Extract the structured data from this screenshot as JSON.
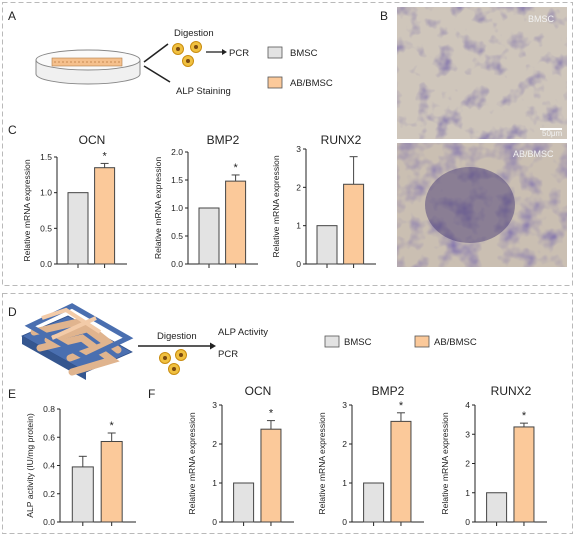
{
  "colors": {
    "bmsc": "#e3e3e3",
    "ab_bmsc": "#fbc99a",
    "border": "#b9b9b9",
    "text": "#222222",
    "stain_purple": "#5a4a8e",
    "tissue_beige": "#cdbba2"
  },
  "icons": [
    "petri-dish-icon",
    "cell-cluster-icon",
    "arrow-icon",
    "scaffold-icon"
  ],
  "panel_labels": {
    "a": "A",
    "b": "B",
    "c": "C",
    "d": "D",
    "e": "E",
    "f": "F"
  },
  "legend": {
    "bmsc": "BMSC",
    "ab_bmsc": "AB/BMSC"
  },
  "schematic_top": {
    "digestion": "Digestion",
    "pcr": "PCR",
    "alp_staining": "ALP Staining"
  },
  "schematic_bottom": {
    "digestion": "Digestion",
    "alp_activity": "ALP Activity",
    "pcr": "PCR"
  },
  "micrographs": {
    "top_label": "BMSC",
    "bottom_label": "AB/BMSC",
    "scale_bar": "50μm"
  },
  "significance": "*",
  "chart_data": [
    {
      "id": "c1",
      "type": "bar",
      "title": "OCN",
      "ylabel": "Relative mRNA expression",
      "categories": [
        "BMSC",
        "AB/BMSC"
      ],
      "values": [
        1.0,
        1.35
      ],
      "errors": [
        0,
        0.06
      ],
      "sig": [
        false,
        true
      ],
      "ylim": [
        0,
        1.5
      ],
      "yticks": [
        0.0,
        0.5,
        1.0,
        1.5
      ],
      "tick_labels": [
        "0.0",
        "0.5",
        "1.0",
        "1.5"
      ]
    },
    {
      "id": "c2",
      "type": "bar",
      "title": "BMP2",
      "ylabel": "Relative mRNA expression",
      "categories": [
        "BMSC",
        "AB/BMSC"
      ],
      "values": [
        1.0,
        1.48
      ],
      "errors": [
        0,
        0.11
      ],
      "sig": [
        false,
        true
      ],
      "ylim": [
        0,
        2.0
      ],
      "yticks": [
        0.0,
        0.5,
        1.0,
        1.5,
        2.0
      ],
      "tick_labels": [
        "0.0",
        "0.5",
        "1.0",
        "1.5",
        "2.0"
      ]
    },
    {
      "id": "c3",
      "type": "bar",
      "title": "RUNX2",
      "ylabel": "Relative mRNA expression",
      "categories": [
        "BMSC",
        "AB/BMSC"
      ],
      "values": [
        1.0,
        2.08
      ],
      "errors": [
        0,
        0.72
      ],
      "sig": [
        false,
        false
      ],
      "ylim": [
        0,
        3
      ],
      "yticks": [
        0,
        1,
        2,
        3
      ],
      "tick_labels": [
        "0",
        "1",
        "2",
        "3"
      ]
    },
    {
      "id": "e",
      "type": "bar",
      "title": "",
      "ylabel": "ALP activity (IU/mg protein)",
      "categories": [
        "BMSC",
        "AB/BMSC"
      ],
      "values": [
        0.39,
        0.57
      ],
      "errors": [
        0.075,
        0.06
      ],
      "sig": [
        false,
        true
      ],
      "ylim": [
        0,
        0.8
      ],
      "yticks": [
        0.0,
        0.2,
        0.4,
        0.6,
        0.8
      ],
      "tick_labels": [
        "0.0",
        "0.2",
        "0.4",
        "0.6",
        "0.8"
      ]
    },
    {
      "id": "f1",
      "type": "bar",
      "title": "OCN",
      "ylabel": "Relative mRNA expression",
      "categories": [
        "BMSC",
        "AB/BMSC"
      ],
      "values": [
        1.0,
        2.38
      ],
      "errors": [
        0,
        0.22
      ],
      "sig": [
        false,
        true
      ],
      "ylim": [
        0,
        3
      ],
      "yticks": [
        0,
        1,
        2,
        3
      ],
      "tick_labels": [
        "0",
        "1",
        "2",
        "3"
      ]
    },
    {
      "id": "f2",
      "type": "bar",
      "title": "BMP2",
      "ylabel": "Relative mRNA expression",
      "categories": [
        "BMSC",
        "AB/BMSC"
      ],
      "values": [
        1.0,
        2.58
      ],
      "errors": [
        0,
        0.22
      ],
      "sig": [
        false,
        true
      ],
      "ylim": [
        0,
        3
      ],
      "yticks": [
        0,
        1,
        2,
        3
      ],
      "tick_labels": [
        "0",
        "1",
        "2",
        "3"
      ]
    },
    {
      "id": "f3",
      "type": "bar",
      "title": "RUNX2",
      "ylabel": "Relative mRNA expression",
      "categories": [
        "BMSC",
        "AB/BMSC"
      ],
      "values": [
        1.0,
        3.25
      ],
      "errors": [
        0,
        0.13
      ],
      "sig": [
        false,
        true
      ],
      "ylim": [
        0,
        4
      ],
      "yticks": [
        0,
        1,
        2,
        3,
        4
      ],
      "tick_labels": [
        "0",
        "1",
        "2",
        "3",
        "4"
      ]
    }
  ]
}
